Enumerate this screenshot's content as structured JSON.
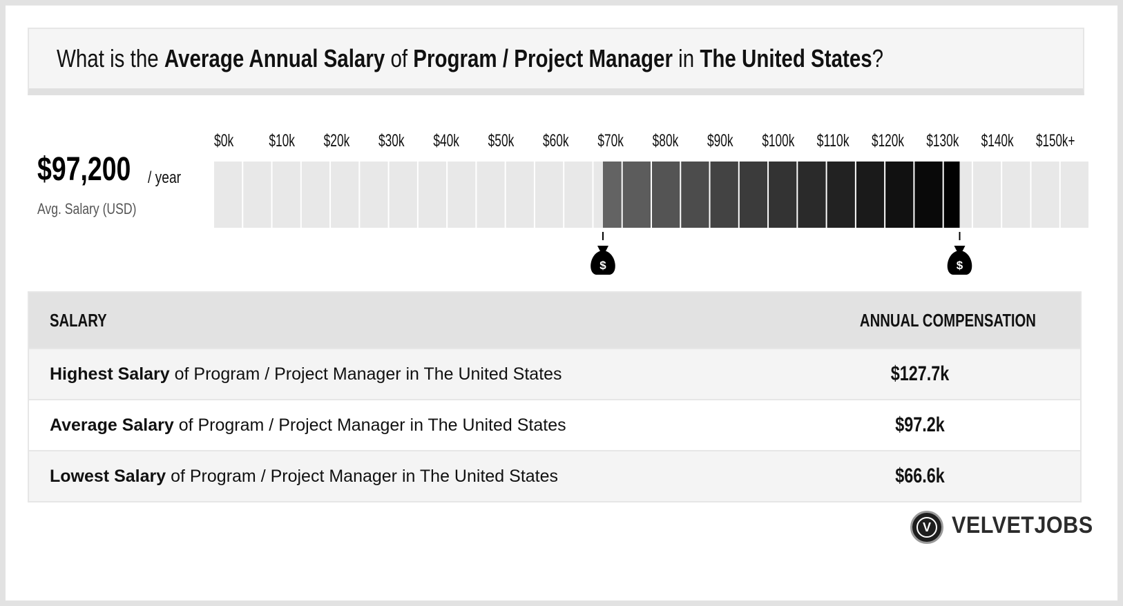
{
  "title": {
    "prefix": "What is the ",
    "metric": "Average Annual Salary",
    "mid1": " of ",
    "job": "Program / Project Manager",
    "mid2": " in ",
    "location": "The United States",
    "suffix": "?"
  },
  "average": {
    "value": "$97,200",
    "unit": "/ year",
    "label": "Avg. Salary (USD)"
  },
  "chart_data": {
    "type": "bar",
    "title": "",
    "xlabel": "",
    "ylabel": "",
    "tick_labels": [
      "$0k",
      "$10k",
      "$20k",
      "$30k",
      "$40k",
      "$50k",
      "$60k",
      "$70k",
      "$80k",
      "$90k",
      "$100k",
      "$110k",
      "$120k",
      "$130k",
      "$140k",
      "$150k+"
    ],
    "xlim": [
      0,
      150000
    ],
    "range_low": 66600,
    "range_high": 127700,
    "average": 97200,
    "marker_icon": "money-bag-icon",
    "colors": {
      "empty": "#e8e8e8",
      "range_start": "#666666",
      "range_end": "#000000"
    }
  },
  "table": {
    "headers": {
      "left": "SALARY",
      "right": "ANNUAL COMPENSATION"
    },
    "rows": [
      {
        "bold": "Highest Salary",
        "rest": " of Program / Project Manager in The United States",
        "value": "$127.7k"
      },
      {
        "bold": "Average Salary",
        "rest": " of Program / Project Manager in The United States",
        "value": "$97.2k"
      },
      {
        "bold": "Lowest Salary",
        "rest": " of Program / Project Manager in The United States",
        "value": "$66.6k"
      }
    ]
  },
  "logo": {
    "letter": "V",
    "text": "VELVETJOBS"
  }
}
